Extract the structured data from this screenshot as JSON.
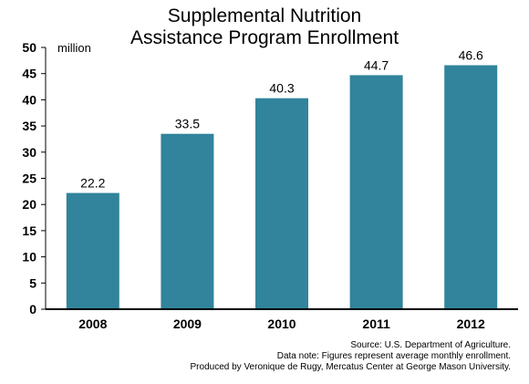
{
  "chart_data": {
    "type": "bar",
    "title_lines": [
      "Supplemental Nutrition",
      "Assistance Program Enrollment"
    ],
    "unit_label": "million",
    "categories": [
      "2008",
      "2009",
      "2010",
      "2011",
      "2012"
    ],
    "values": [
      22.2,
      33.5,
      40.3,
      44.7,
      46.6
    ],
    "value_labels": [
      "22.2",
      "33.5",
      "40.3",
      "44.7",
      "46.6"
    ],
    "ylim": [
      0,
      50
    ],
    "yticks": [
      0,
      5,
      10,
      15,
      20,
      25,
      30,
      35,
      40,
      45,
      50
    ],
    "grid": false,
    "bar_color": "#31849b"
  },
  "notes": {
    "source": "Source: U.S. Department of Agriculture.",
    "data_note": "Data note: Figures represent average monthly enrollment.",
    "produced_by": "Produced by Veronique de Rugy, Mercatus Center at George Mason University."
  }
}
